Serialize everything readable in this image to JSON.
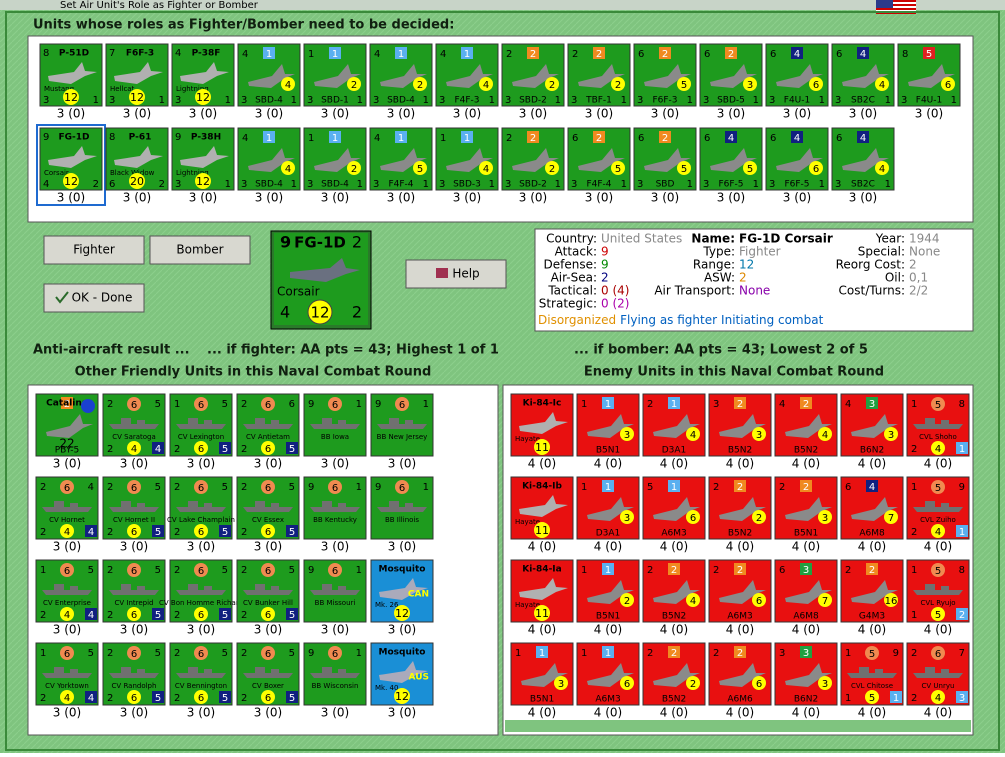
{
  "window": {
    "title": "Set Air Unit's Role as Fighter or Bomber"
  },
  "header": "Units whose roles as Fighter/Bomber need to be decided:",
  "pending": [
    [
      {
        "tl": "8",
        "top": "P-51D",
        "sub": "Mustang",
        "bl": "3",
        "bc": "12",
        "br": "1",
        "cap": "3 (0)"
      },
      {
        "tl": "7",
        "top": "F6F-3",
        "sub": "Hellcat",
        "bl": "3",
        "bc": "12",
        "br": "1",
        "cap": "3 (0)"
      },
      {
        "tl": "4",
        "top": "P-38F",
        "sub": "Lightning",
        "bl": "3",
        "bc": "12",
        "br": "1",
        "cap": "3 (0)"
      },
      {
        "tl": "4",
        "badge": "1",
        "bc": "4",
        "bl": "3",
        "name": "SBD-4",
        "br": "1",
        "cap": "3 (0)"
      },
      {
        "tl": "1",
        "badge": "1",
        "bc": "2",
        "bl": "3",
        "name": "SBD-1",
        "br": "1",
        "cap": "3 (0)"
      },
      {
        "tl": "4",
        "badge": "1",
        "bc": "2",
        "bl": "3",
        "name": "SBD-4",
        "br": "1",
        "cap": "3 (0)"
      },
      {
        "tl": "4",
        "badge": "1",
        "bc": "4",
        "bl": "3",
        "name": "F4F-3",
        "br": "1",
        "cap": "3 (0)"
      },
      {
        "tl": "2",
        "badge": "2",
        "bc": "2",
        "bl": "3",
        "name": "SBD-2",
        "br": "1",
        "cap": "3 (0)"
      },
      {
        "tl": "2",
        "badge": "2",
        "bc": "2",
        "bl": "3",
        "name": "TBF-1",
        "br": "1",
        "cap": "3 (0)"
      },
      {
        "tl": "6",
        "badge": "2",
        "bc": "5",
        "bl": "3",
        "name": "F6F-3",
        "br": "1",
        "cap": "3 (0)"
      },
      {
        "tl": "6",
        "badge": "2",
        "bc": "3",
        "bl": "3",
        "name": "SBD-5",
        "br": "1",
        "cap": "3 (0)"
      },
      {
        "tl": "6",
        "badge": "4",
        "bc": "6",
        "bl": "3",
        "name": "F4U-1",
        "br": "1",
        "cap": "3 (0)"
      },
      {
        "tl": "6",
        "badge": "4",
        "bc": "4",
        "bl": "3",
        "name": "SB2C",
        "br": "1",
        "cap": "3 (0)"
      },
      {
        "tl": "8",
        "badge": "5",
        "bc": "6",
        "bl": "3",
        "name": "F4U-1",
        "br": "1",
        "cap": "3 (0)"
      }
    ],
    [
      {
        "tl": "9",
        "top": "FG-1D",
        "sub": "Corsair",
        "bl": "4",
        "bc": "12",
        "br": "2",
        "cap": "3 (0)"
      },
      {
        "tl": "8",
        "top": "P-61",
        "sub": "Black Widow",
        "bl": "6",
        "bc": "20",
        "br": "2",
        "cap": "3 (0)"
      },
      {
        "tl": "9",
        "top": "P-38H",
        "sub": "Lightning",
        "bl": "3",
        "bc": "12",
        "br": "1",
        "cap": "3 (0)"
      },
      {
        "tl": "4",
        "badge": "1",
        "bc": "4",
        "bl": "3",
        "name": "SBD-4",
        "br": "1",
        "cap": "3 (0)"
      },
      {
        "tl": "1",
        "badge": "1",
        "bc": "2",
        "bl": "3",
        "name": "SBD-4",
        "br": "1",
        "cap": "3 (0)"
      },
      {
        "tl": "4",
        "badge": "1",
        "bc": "5",
        "bl": "3",
        "name": "F4F-4",
        "br": "1",
        "cap": "3 (0)"
      },
      {
        "tl": "1",
        "badge": "1",
        "bc": "4",
        "bl": "3",
        "name": "SBD-3",
        "br": "1",
        "cap": "3 (0)"
      },
      {
        "tl": "2",
        "badge": "2",
        "bc": "2",
        "bl": "3",
        "name": "SBD-2",
        "br": "1",
        "cap": "3 (0)"
      },
      {
        "tl": "6",
        "badge": "2",
        "bc": "5",
        "bl": "3",
        "name": "F4F-4",
        "br": "1",
        "cap": "3 (0)"
      },
      {
        "tl": "6",
        "badge": "2",
        "bc": "5",
        "bl": "3",
        "name": "SBD",
        "br": "1",
        "cap": "3 (0)"
      },
      {
        "tl": "6",
        "badge": "4",
        "bc": "5",
        "bl": "3",
        "name": "F6F-5",
        "br": "1",
        "cap": "3 (0)"
      },
      {
        "tl": "6",
        "badge": "4",
        "bc": "6",
        "bl": "3",
        "name": "F6F-5",
        "br": "1",
        "cap": "3 (0)"
      },
      {
        "tl": "6",
        "badge": "4",
        "bc": "4",
        "bl": "3",
        "name": "SB2C",
        "br": "1",
        "cap": "3 (0)"
      }
    ]
  ],
  "buttons": {
    "fighter": "Fighter",
    "bomber": "Bomber",
    "ok": "OK - Done",
    "help": "Help"
  },
  "selected": {
    "tl": "9",
    "top": "FG-1D",
    "tr": "2",
    "sub": "Corsair",
    "bl": "4",
    "bc": "12",
    "br": "2"
  },
  "info": {
    "columns": [
      [
        {
          "label": "Country:",
          "value": "United States",
          "color": "#888888"
        },
        {
          "label": "Attack:",
          "value": "9",
          "color": "#cc0000"
        },
        {
          "label": "Defense:",
          "value": "9",
          "color": "#008800"
        },
        {
          "label": "Air-Sea:",
          "value": "2",
          "color": "#000080"
        },
        {
          "label": "Tactical:",
          "value": "0 (4)",
          "color": "#aa0000"
        },
        {
          "label": "Strategic:",
          "value": "0 (2)",
          "color": "#aa00aa"
        }
      ],
      [
        {
          "label": "Name:",
          "value": "FG-1D Corsair",
          "color": "#000000"
        },
        {
          "label": "Type:",
          "value": "Fighter",
          "color": "#888888"
        },
        {
          "label": "Range:",
          "value": "12",
          "color": "#0077aa"
        },
        {
          "label": "ASW:",
          "value": "2",
          "color": "#dd8800"
        },
        {
          "label": "Air Transport:",
          "value": "None",
          "color": "#8800aa"
        }
      ],
      [
        {
          "label": "Year:",
          "value": "1944",
          "color": "#888888"
        },
        {
          "label": "Special:",
          "value": "None",
          "color": "#888888"
        },
        {
          "label": "Reorg Cost:",
          "value": "2",
          "color": "#888888"
        },
        {
          "label": "Oil:",
          "value": "0,1",
          "color": "#888888"
        },
        {
          "label": "Cost/Turns:",
          "value": "2/2",
          "color": "#888888"
        }
      ]
    ],
    "status": [
      {
        "text": "Disorganized",
        "color": "#e09000"
      },
      {
        "text": "Flying as fighter",
        "color": "#0060c0"
      },
      {
        "text": "Initiating combat",
        "color": "#0060c0"
      }
    ]
  },
  "aa": {
    "title": "Anti-aircraft result ...",
    "fighter": "... if fighter:  AA pts = 43; Highest 1 of 1",
    "bomber": "... if bomber:  AA pts = 43; Lowest 2 of 5"
  },
  "friendly": {
    "title": "Other Friendly Units in this Naval Combat Round",
    "rows": [
      [
        {
          "top": "Catalina",
          "badge": "2",
          "bc": "22",
          "name": "PBY-5",
          "cap": "3 (0)"
        },
        {
          "tl": "2",
          "tc": "6",
          "tr": "5",
          "name": "CV Saratoga",
          "bl": "2",
          "bc": "4",
          "br": "4",
          "cap": "3 (0)"
        },
        {
          "tl": "1",
          "tc": "6",
          "tr": "5",
          "name": "CV Lexington",
          "bl": "2",
          "bc": "6",
          "br": "5",
          "cap": "3 (0)"
        },
        {
          "tl": "2",
          "tc": "6",
          "tr": "6",
          "name": "CV Antietam",
          "bl": "2",
          "bc": "6",
          "br": "5",
          "cap": "3 (0)"
        },
        {
          "tl": "9",
          "tc": "6",
          "tr": "1",
          "name": "BB Iowa",
          "cap": "3 (0)"
        },
        {
          "tl": "9",
          "tc": "6",
          "tr": "1",
          "name": "BB New Jersey",
          "cap": "3 (0)"
        }
      ],
      [
        {
          "tl": "2",
          "tc": "6",
          "tr": "4",
          "name": "CV Hornet",
          "bl": "2",
          "bc": "4",
          "br": "4",
          "cap": "3 (0)"
        },
        {
          "tl": "2",
          "tc": "6",
          "tr": "5",
          "name": "CV Hornet II",
          "bl": "2",
          "bc": "6",
          "br": "5",
          "cap": "3 (0)"
        },
        {
          "tl": "2",
          "tc": "6",
          "tr": "5",
          "name": "CV Lake Champlain",
          "bl": "2",
          "bc": "6",
          "br": "5",
          "cap": "3 (0)"
        },
        {
          "tl": "2",
          "tc": "6",
          "tr": "5",
          "name": "CV Essex",
          "bl": "2",
          "bc": "6",
          "br": "5",
          "cap": "3 (0)"
        },
        {
          "tl": "9",
          "tc": "6",
          "tr": "1",
          "name": "BB Kentucky",
          "cap": "3 (0)"
        },
        {
          "tl": "9",
          "tc": "6",
          "tr": "1",
          "name": "BB Illinois",
          "cap": "3 (0)"
        }
      ],
      [
        {
          "tl": "1",
          "tc": "6",
          "tr": "5",
          "name": "CV Enterprise",
          "bl": "2",
          "bc": "4",
          "br": "4",
          "cap": "3 (0)"
        },
        {
          "tl": "2",
          "tc": "6",
          "tr": "5",
          "name": "CV Intrepid",
          "bl": "2",
          "bc": "6",
          "br": "5",
          "cap": "3 (0)"
        },
        {
          "tl": "2",
          "tc": "6",
          "tr": "5",
          "name": "CV Bon Homme Richard",
          "bl": "2",
          "bc": "6",
          "br": "5",
          "cap": "3 (0)"
        },
        {
          "tl": "2",
          "tc": "6",
          "tr": "5",
          "name": "CV Bunker Hill",
          "bl": "2",
          "bc": "6",
          "br": "5",
          "cap": "3 (0)"
        },
        {
          "tl": "9",
          "tc": "6",
          "tr": "1",
          "name": "BB Missouri",
          "cap": "3 (0)"
        },
        {
          "top": "Mosquito",
          "sub": "Mk. 26",
          "flag": "CAN",
          "bc": "12",
          "cap": "3 (0)"
        }
      ],
      [
        {
          "tl": "1",
          "tc": "6",
          "tr": "5",
          "name": "CV Yorktown",
          "bl": "2",
          "bc": "4",
          "br": "4",
          "cap": "3 (0)"
        },
        {
          "tl": "2",
          "tc": "6",
          "tr": "5",
          "name": "CV Randolph",
          "bl": "2",
          "bc": "6",
          "br": "5",
          "cap": "3 (0)"
        },
        {
          "tl": "2",
          "tc": "6",
          "tr": "5",
          "name": "CV Bennington",
          "bl": "2",
          "bc": "6",
          "br": "5",
          "cap": "3 (0)"
        },
        {
          "tl": "2",
          "tc": "6",
          "tr": "5",
          "name": "CV Boxer",
          "bl": "2",
          "bc": "6",
          "br": "5",
          "cap": "3 (0)"
        },
        {
          "tl": "9",
          "tc": "6",
          "tr": "1",
          "name": "BB Wisconsin",
          "cap": "3 (0)"
        },
        {
          "top": "Mosquito",
          "sub": "Mk. 40",
          "flag": "AUS",
          "bc": "12",
          "cap": "3 (0)"
        }
      ]
    ]
  },
  "enemy": {
    "title": "Enemy Units in this Naval Combat Round",
    "rows": [
      [
        {
          "top": "Ki-84-Ic",
          "sub": "Hayate",
          "bc": "11",
          "cap": "4 (0)"
        },
        {
          "tl": "1",
          "badge": "1",
          "bc": "3",
          "name": "B5N1",
          "cap": "4 (0)"
        },
        {
          "tl": "2",
          "badge": "1",
          "bc": "4",
          "name": "D3A1",
          "cap": "4 (0)"
        },
        {
          "tl": "3",
          "badge": "2",
          "bc": "3",
          "name": "B5N2",
          "cap": "4 (0)"
        },
        {
          "tl": "4",
          "badge": "2",
          "bc": "4",
          "name": "B5N2",
          "cap": "4 (0)"
        },
        {
          "tl": "4",
          "badge": "3",
          "bc": "3",
          "name": "B6N2",
          "cap": "4 (0)"
        },
        {
          "tl": "1",
          "tc": "5",
          "tr": "8",
          "name": "CVL Shoho",
          "bl": "2",
          "bc": "4",
          "br": "1",
          "cap": "4 (0)"
        }
      ],
      [
        {
          "top": "Ki-84-Ib",
          "sub": "Hayate",
          "bc": "11",
          "cap": "4 (0)"
        },
        {
          "tl": "1",
          "badge": "1",
          "bc": "3",
          "name": "D3A1",
          "cap": "4 (0)"
        },
        {
          "tl": "5",
          "badge": "1",
          "bc": "6",
          "name": "A6M3",
          "cap": "4 (0)"
        },
        {
          "tl": "2",
          "badge": "2",
          "bc": "2",
          "name": "B5N2",
          "cap": "4 (0)"
        },
        {
          "tl": "2",
          "badge": "2",
          "bc": "3",
          "name": "B5N1",
          "cap": "4 (0)"
        },
        {
          "tl": "6",
          "badge": "4",
          "bc": "7",
          "name": "A6M8",
          "cap": "4 (0)"
        },
        {
          "tl": "1",
          "tc": "5",
          "tr": "9",
          "name": "CVL Zuiho",
          "bl": "2",
          "bc": "4",
          "br": "1",
          "cap": "4 (0)"
        }
      ],
      [
        {
          "top": "Ki-84-Ia",
          "sub": "Hayate",
          "bc": "11",
          "cap": "4 (0)"
        },
        {
          "tl": "1",
          "badge": "1",
          "bc": "2",
          "name": "B5N1",
          "cap": "4 (0)"
        },
        {
          "tl": "2",
          "badge": "2",
          "bc": "4",
          "name": "B5N2",
          "cap": "4 (0)"
        },
        {
          "tl": "2",
          "badge": "2",
          "bc": "6",
          "name": "A6M3",
          "cap": "4 (0)"
        },
        {
          "tl": "6",
          "badge": "3",
          "bc": "7",
          "name": "A6M8",
          "cap": "4 (0)"
        },
        {
          "tl": "2",
          "badge": "2",
          "bc": "16",
          "name": "G4M3",
          "cap": "4 (0)"
        },
        {
          "tl": "1",
          "tc": "5",
          "tr": "8",
          "name": "CVL Ryujo",
          "bl": "1",
          "bc": "5",
          "br": "2",
          "cap": "4 (0)"
        }
      ],
      [
        {
          "tl": "1",
          "badge": "1",
          "bc": "3",
          "name": "B5N1",
          "cap": "4 (0)"
        },
        {
          "tl": "1",
          "badge": "1",
          "bc": "6",
          "name": "A6M3",
          "cap": "4 (0)"
        },
        {
          "tl": "2",
          "badge": "2",
          "bc": "2",
          "name": "B5N2",
          "cap": "4 (0)"
        },
        {
          "tl": "2",
          "badge": "2",
          "bc": "6",
          "name": "A6M6",
          "cap": "4 (0)"
        },
        {
          "tl": "3",
          "badge": "3",
          "bc": "3",
          "name": "B6N2",
          "cap": "4 (0)"
        },
        {
          "tl": "1",
          "tc": "5",
          "tr": "9",
          "name": "CVL Chitose",
          "bl": "1",
          "bc": "5",
          "br": "1",
          "cap": "4 (0)"
        },
        {
          "tl": "2",
          "tc": "6",
          "tr": "7",
          "name": "CV Unryu",
          "bl": "2",
          "bc": "4",
          "br": "3",
          "cap": "4 (0)"
        }
      ]
    ]
  }
}
